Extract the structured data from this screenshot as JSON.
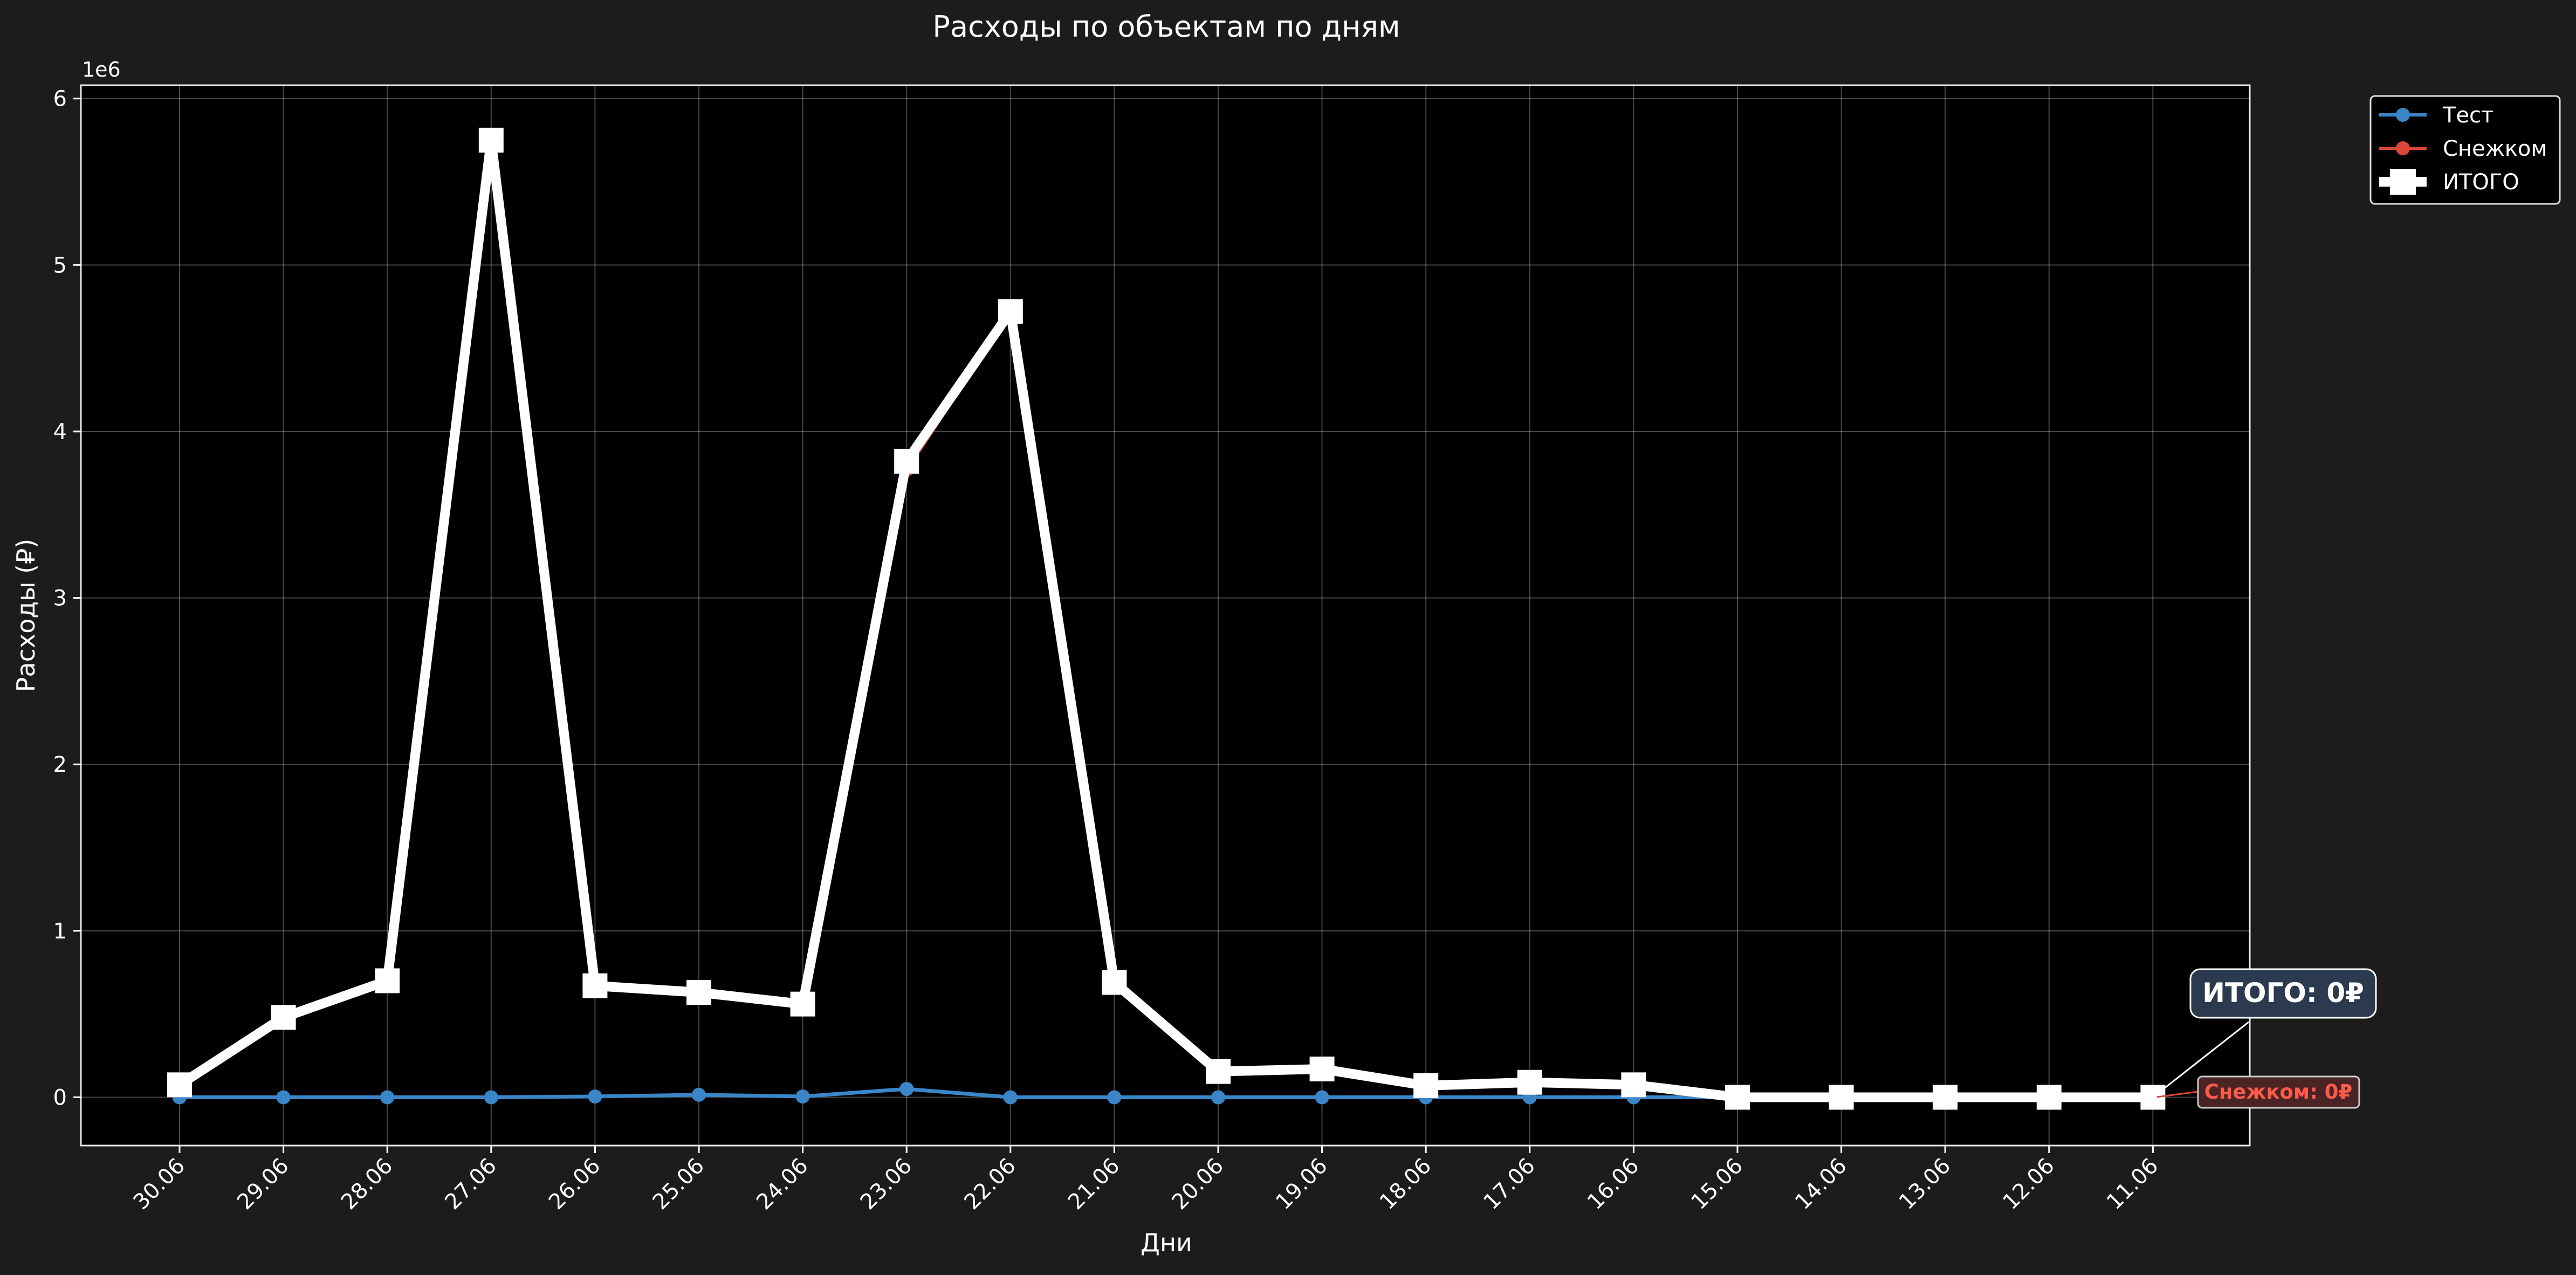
{
  "chart_data": {
    "type": "line",
    "title": "Расходы по объектам по дням",
    "xlabel": "Дни",
    "ylabel": "Расходы (₽)",
    "y_offset_label": "1e6",
    "y_scale_factor": 1000000,
    "ylim": [
      -290000,
      6080000
    ],
    "y_ticks": [
      0,
      1,
      2,
      3,
      4,
      5,
      6
    ],
    "grid": true,
    "legend_position": "outside top-right",
    "categories": [
      "30.06",
      "29.06",
      "28.06",
      "27.06",
      "26.06",
      "25.06",
      "24.06",
      "23.06",
      "22.06",
      "21.06",
      "20.06",
      "19.06",
      "18.06",
      "17.06",
      "16.06",
      "15.06",
      "14.06",
      "13.06",
      "12.06",
      "11.06"
    ],
    "series": [
      {
        "name": "Тест",
        "color": "#3a86c8",
        "marker": "circle",
        "values": [
          0,
          0,
          0,
          0,
          5000,
          15000,
          5000,
          50000,
          0,
          0,
          0,
          0,
          0,
          0,
          0,
          0,
          0,
          0,
          0,
          0
        ]
      },
      {
        "name": "Снежком",
        "color": "#d9473a",
        "marker": "circle",
        "values": [
          75000,
          480000,
          700000,
          5750000,
          665000,
          615000,
          555000,
          3770000,
          4720000,
          690000,
          155000,
          170000,
          70000,
          90000,
          75000,
          0,
          0,
          0,
          0,
          0
        ]
      },
      {
        "name": "ИТОГО",
        "color": "#ffffff",
        "marker": "square",
        "values": [
          75000,
          480000,
          700000,
          5750000,
          670000,
          630000,
          560000,
          3820000,
          4720000,
          690000,
          155000,
          170000,
          70000,
          90000,
          75000,
          0,
          0,
          0,
          0,
          0
        ]
      }
    ],
    "annotations": [
      {
        "text": "ИТОГО: 0₽",
        "series": "ИТОГО",
        "point": "11.06"
      },
      {
        "text": "Снежком: 0₽",
        "series": "Снежком",
        "point": "11.06"
      }
    ]
  }
}
